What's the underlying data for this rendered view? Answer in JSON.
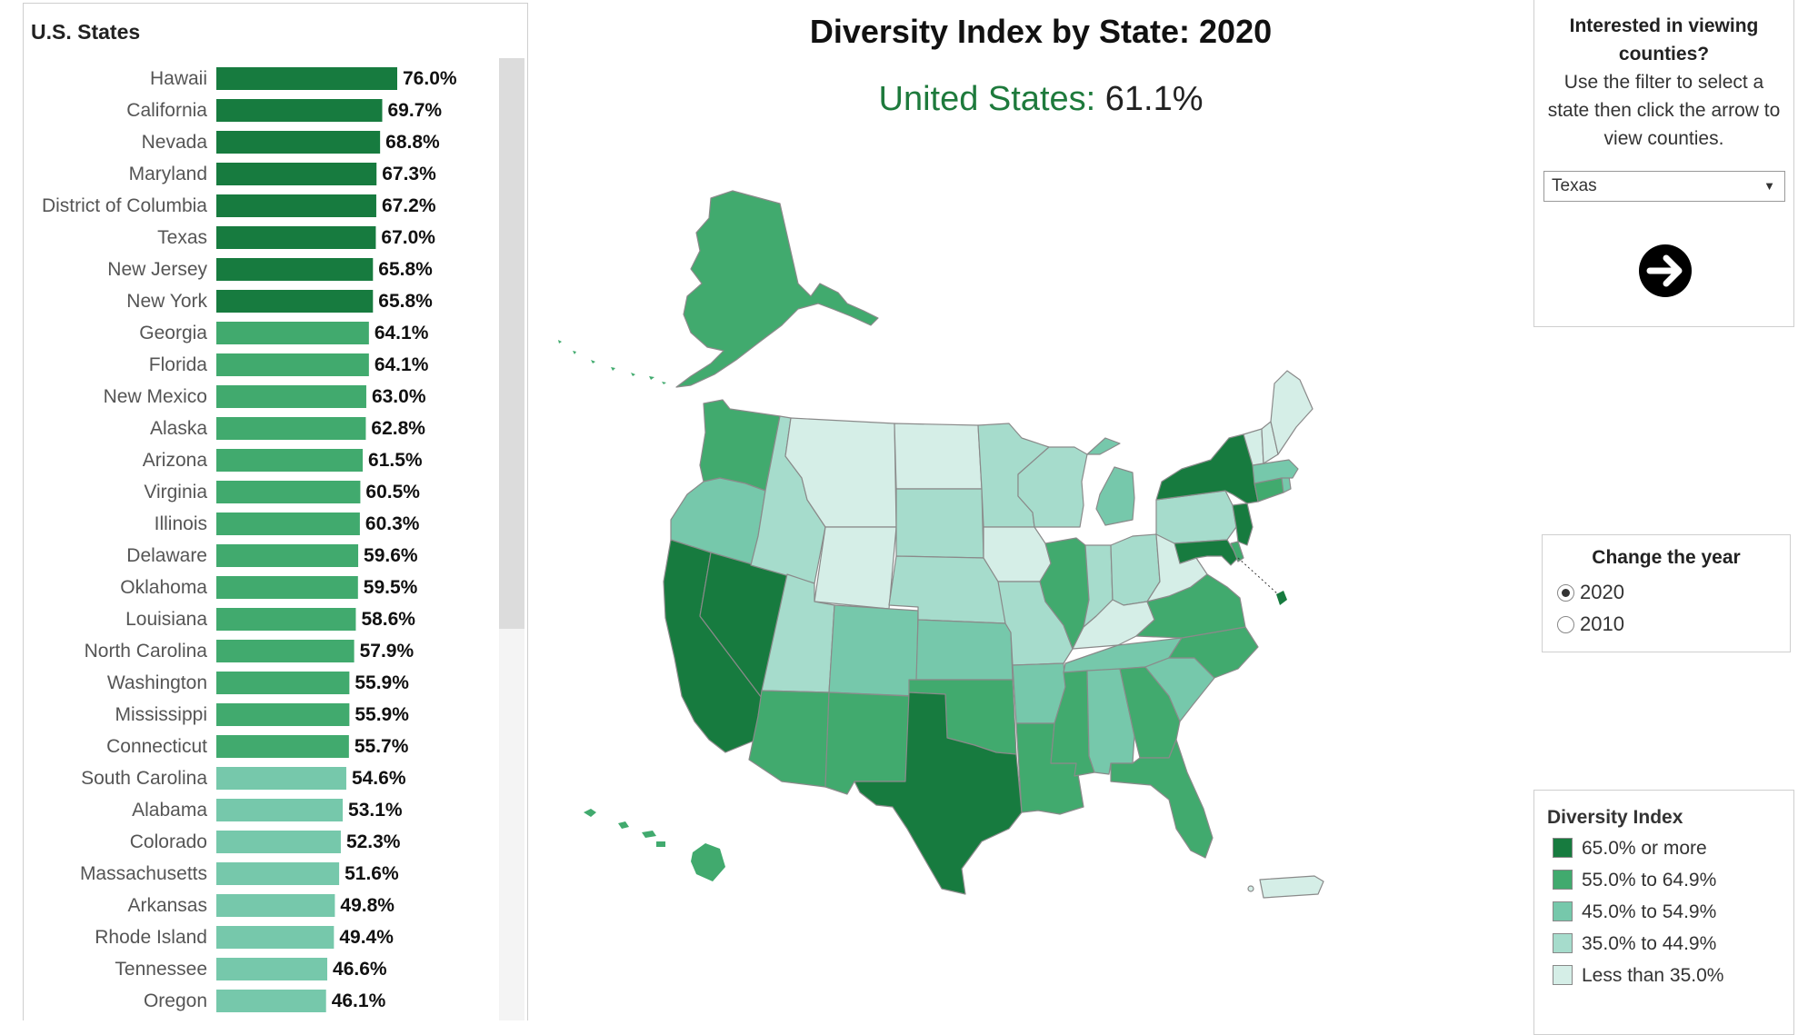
{
  "states_panel": {
    "title": "U.S. States"
  },
  "header": {
    "title": "Diversity Index by State: 2020",
    "us_label": "United States:",
    "us_value": "61.1%"
  },
  "county_filter": {
    "question": "Interested in viewing counties?",
    "hint": "Use the filter to select a state then click the arrow to view counties.",
    "selected_state": "Texas",
    "go_icon": "arrow-right-circle-icon"
  },
  "year_selector": {
    "title": "Change the year",
    "options": [
      "2020",
      "2010"
    ],
    "selected": "2020"
  },
  "legend": {
    "title": "Diversity Index",
    "items": [
      {
        "label": "65.0% or more",
        "color": "#177b3f"
      },
      {
        "label": "55.0% to 64.9%",
        "color": "#41aa6e"
      },
      {
        "label": "45.0% to 54.9%",
        "color": "#76c8ab"
      },
      {
        "label": "35.0% to 44.9%",
        "color": "#a6dccc"
      },
      {
        "label": "Less than 35.0%",
        "color": "#d5eee7"
      }
    ]
  },
  "chart_data": {
    "type": "bar",
    "orientation": "horizontal",
    "title": "U.S. States",
    "unit": "%",
    "categories": [
      "Hawaii",
      "California",
      "Nevada",
      "Maryland",
      "District of Columbia",
      "Texas",
      "New Jersey",
      "New York",
      "Georgia",
      "Florida",
      "New Mexico",
      "Alaska",
      "Arizona",
      "Virginia",
      "Illinois",
      "Delaware",
      "Oklahoma",
      "Louisiana",
      "North Carolina",
      "Washington",
      "Mississippi",
      "Connecticut",
      "South Carolina",
      "Alabama",
      "Colorado",
      "Massachusetts",
      "Arkansas",
      "Rhode Island",
      "Tennessee",
      "Oregon"
    ],
    "values": [
      76.0,
      69.7,
      68.8,
      67.3,
      67.2,
      67.0,
      65.8,
      65.8,
      64.1,
      64.1,
      63.0,
      62.8,
      61.5,
      60.5,
      60.3,
      59.6,
      59.5,
      58.6,
      57.9,
      55.9,
      55.9,
      55.7,
      54.6,
      53.1,
      52.3,
      51.6,
      49.8,
      49.4,
      46.6,
      46.1
    ],
    "labels": [
      "76.0%",
      "69.7%",
      "68.8%",
      "67.3%",
      "67.2%",
      "67.0%",
      "65.8%",
      "65.8%",
      "64.1%",
      "64.1%",
      "63.0%",
      "62.8%",
      "61.5%",
      "60.5%",
      "60.3%",
      "59.6%",
      "59.5%",
      "58.6%",
      "57.9%",
      "55.9%",
      "55.9%",
      "55.7%",
      "54.6%",
      "53.1%",
      "52.3%",
      "51.6%",
      "49.8%",
      "49.4%",
      "46.6%",
      "46.1%"
    ],
    "xlim": [
      0,
      76.0
    ],
    "color_bins": [
      {
        "min": 65.0,
        "color": "#177b3f"
      },
      {
        "min": 55.0,
        "color": "#41aa6e"
      },
      {
        "min": 45.0,
        "color": "#76c8ab"
      },
      {
        "min": 35.0,
        "color": "#a6dccc"
      },
      {
        "min": 0,
        "color": "#d5eee7"
      }
    ]
  }
}
